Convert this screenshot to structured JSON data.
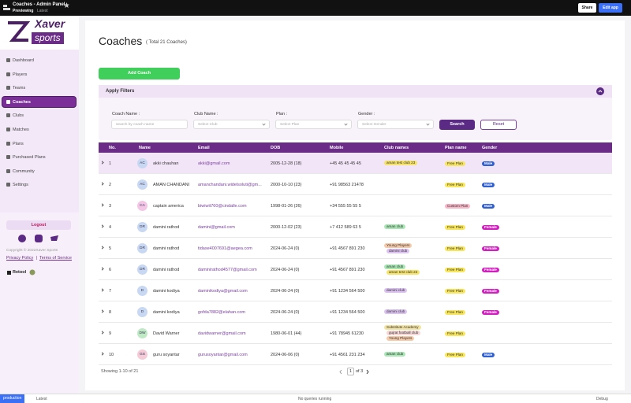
{
  "topbar": {
    "app_name": "Coaches - Admin Panel",
    "mode": "Previewing",
    "version": "Latest",
    "share": "Share",
    "edit": "Edit app"
  },
  "sidebar": {
    "logo_top": "Xaver",
    "logo_bottom": "sports",
    "nav": [
      {
        "label": "Dashboard"
      },
      {
        "label": "Players"
      },
      {
        "label": "Teams"
      },
      {
        "label": "Coaches",
        "active": true
      },
      {
        "label": "Clubs"
      },
      {
        "label": "Matches"
      },
      {
        "label": "Plans"
      },
      {
        "label": "Purchased Plans"
      },
      {
        "label": "Community"
      },
      {
        "label": "Settings"
      }
    ],
    "logout": "Logout",
    "copyright": "Copyright © 2022Xaver Sports",
    "privacy": "Privacy Policy",
    "separator": "|",
    "terms": "Terms of Service",
    "retool": "Retool"
  },
  "page": {
    "title": "Coaches",
    "subtitle": "( Total 21 Coaches)",
    "add_button": "Add Coach",
    "filters": {
      "title": "Apply Filters",
      "fields": [
        {
          "label": "Coach Name :",
          "placeholder": "search by coach name"
        },
        {
          "label": "Club Name :",
          "placeholder": "Select Club"
        },
        {
          "label": "Plan :",
          "placeholder": "Select Plan"
        },
        {
          "label": "Gender :",
          "placeholder": "Select Gender"
        }
      ],
      "search": "Search",
      "reset": "Reset"
    },
    "table": {
      "columns": [
        "No.",
        "Name",
        "Email",
        "DOB",
        "Mobile",
        "Club names",
        "Plan name",
        "Gender"
      ],
      "rows": [
        {
          "no": 1,
          "initials": "AC",
          "avatar_color": "#c9d8f2",
          "name": "akki chauhan",
          "email": "akki@gmail.com",
          "dob": "2005-12-28 (18)",
          "mobile": "+45 45 45 45 45",
          "clubs": [
            {
              "name": "aman test club 23",
              "color": "#f5e36a"
            }
          ],
          "plan": "Free Plan",
          "plan_color": "#f7e55c",
          "gender": "Male",
          "gender_color": "#2f5fd0"
        },
        {
          "no": 2,
          "initials": "AC",
          "avatar_color": "#c9d8f2",
          "name": "AMAN CHANDANI",
          "email": "amanchandani.widelsoluti@gm...",
          "dob": "2000-10-10 (23)",
          "mobile": "+91 98563 21478",
          "clubs": [],
          "plan": "Free Plan",
          "plan_color": "#f7e55c",
          "gender": "Male",
          "gender_color": "#2f5fd0"
        },
        {
          "no": 3,
          "initials": "CA",
          "avatar_color": "#f3c6e6",
          "name": "captain america",
          "email": "biwiwit760@cindalle.com",
          "dob": "1998-01-26 (26)",
          "mobile": "+34 555 55 55 5",
          "clubs": [],
          "plan": "Custom Plan",
          "plan_color": "#f7b6c8",
          "gender": "Male",
          "gender_color": "#2f5fd0"
        },
        {
          "no": 4,
          "initials": "DR",
          "avatar_color": "#c9d8f2",
          "name": "damini rathod",
          "email": "damini@gmail.com",
          "dob": "2000-12-02 (23)",
          "mobile": "+7 412 589 63 5",
          "clubs": [
            {
              "name": "aman club",
              "color": "#a8e6b4"
            }
          ],
          "plan": "Free Plan",
          "plan_color": "#f7e55c",
          "gender": "Female",
          "gender_color": "#d41fc0"
        },
        {
          "no": 5,
          "initials": "DR",
          "avatar_color": "#c9d8f2",
          "name": "damini rathod",
          "email": "tidase4007691@aegea.com",
          "dob": "2024-06-24 (0)",
          "mobile": "+91 4567 891 230",
          "clubs": [
            {
              "name": "Young Players",
              "color": "#f6c9a8"
            },
            {
              "name": "damini club",
              "color": "#dcc2f0"
            }
          ],
          "plan": "Free Plan",
          "plan_color": "#f7e55c",
          "gender": "Female",
          "gender_color": "#d41fc0"
        },
        {
          "no": 6,
          "initials": "DR",
          "avatar_color": "#c9d8f2",
          "name": "damini rathod",
          "email": "daminirathod4577@gmail.com",
          "dob": "2024-06-24 (0)",
          "mobile": "+91 4567 891 230",
          "clubs": [
            {
              "name": "aman club",
              "color": "#a8e6b4"
            },
            {
              "name": "aman test club 22",
              "color": "#f5e36a"
            }
          ],
          "plan": "Free Plan",
          "plan_color": "#f7e55c",
          "gender": "Female",
          "gender_color": "#d41fc0"
        },
        {
          "no": 7,
          "initials": "D",
          "avatar_color": "#c9d8f2",
          "name": "damini kodiya",
          "email": "daminikodiya@gmail.com",
          "dob": "2024-06-24 (0)",
          "mobile": "+91 1234 564 500",
          "clubs": [
            {
              "name": "damini club",
              "color": "#dcc2f0"
            }
          ],
          "plan": "Free Plan",
          "plan_color": "#f7e55c",
          "gender": "Female",
          "gender_color": "#d41fc0"
        },
        {
          "no": 8,
          "initials": "D",
          "avatar_color": "#c9d8f2",
          "name": "damini kodiya",
          "email": "gofda7882@elahan.com",
          "dob": "2024-06-24 (0)",
          "mobile": "+91 1234 564 500",
          "clubs": [
            {
              "name": "damini club",
              "color": "#dcc2f0"
            }
          ],
          "plan": "Free Plan",
          "plan_color": "#f7e55c",
          "gender": "Female",
          "gender_color": "#d41fc0"
        },
        {
          "no": 9,
          "initials": "DW",
          "avatar_color": "#bfe8c4",
          "name": "David Warner",
          "email": "davidwarner@gmail.com",
          "dob": "1980-06-01 (44)",
          "mobile": "+91 78945 61230",
          "clubs": [
            {
              "name": "Substitute Academy",
              "color": "#f3e3a0"
            },
            {
              "name": "gujrat football club",
              "color": "#f6d7d7"
            },
            {
              "name": "Young Players",
              "color": "#f6c9a8"
            }
          ],
          "plan": "Free Plan",
          "plan_color": "#f7e55c"
        },
        {
          "no": 10,
          "initials": "GS",
          "avatar_color": "#f4cbd6",
          "name": "guru soyantar",
          "email": "gurusoyantar@gmail.com",
          "dob": "2024-06-06 (0)",
          "mobile": "+91 4561 231 234",
          "clubs": [
            {
              "name": "aman club",
              "color": "#a8e6b4"
            }
          ],
          "plan": "Free Plan",
          "plan_color": "#f7e55c",
          "gender": "Male",
          "gender_color": "#2f5fd0"
        }
      ]
    },
    "footer": {
      "showing": "Showing 1-10 of 21",
      "page": "1",
      "of": "of 3"
    }
  },
  "statusbar": {
    "env": "production",
    "version": "Latest",
    "queries": "No queries running",
    "debug": "Debug"
  }
}
